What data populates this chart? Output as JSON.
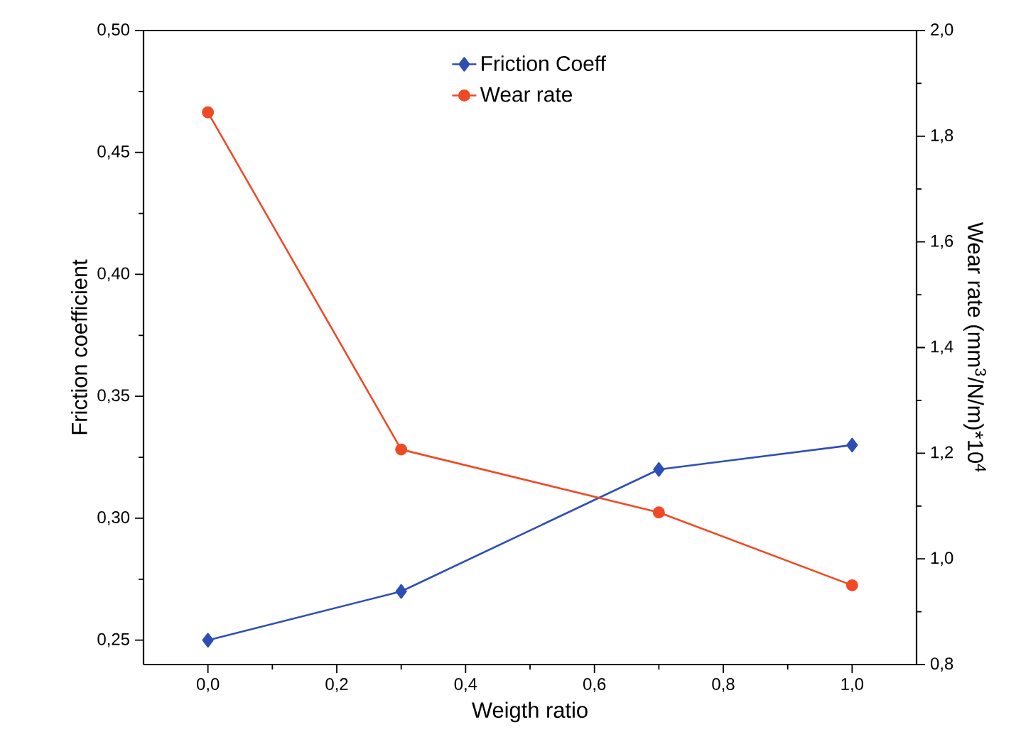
{
  "chart_data": {
    "type": "line",
    "xlabel": "Weigth ratio",
    "ylabel": "Friction coefficient",
    "y2label": "Wear rate (mm$^{3}$/N/m)*10$^{4}$",
    "x": [
      0.0,
      0.3,
      0.7,
      1.0
    ],
    "series": [
      {
        "name": "Friction Coeff",
        "color": "#2d4fb5",
        "marker": "diamond",
        "values": [
          0.25,
          0.27,
          0.32,
          0.33
        ]
      },
      {
        "name": "Wear rate",
        "color": "#f04a25",
        "marker": "circle",
        "axis": "y2",
        "values": [
          1.845,
          1.207,
          1.088,
          0.95
        ]
      }
    ],
    "xlim": [
      -0.1,
      1.1
    ],
    "xticks": [
      {
        "value": 0.0,
        "label": "0,0"
      },
      {
        "value": 0.2,
        "label": "0,2"
      },
      {
        "value": 0.4,
        "label": "0,4"
      },
      {
        "value": 0.6,
        "label": "0,6"
      },
      {
        "value": 0.8,
        "label": "0,8"
      },
      {
        "value": 1.0,
        "label": "1,0"
      }
    ],
    "ylim": [
      0.24,
      0.5
    ],
    "yticks": [
      {
        "value": 0.25,
        "label": "0,25"
      },
      {
        "value": 0.3,
        "label": "0,30"
      },
      {
        "value": 0.35,
        "label": "0,35"
      },
      {
        "value": 0.4,
        "label": "0,40"
      },
      {
        "value": 0.45,
        "label": "0,45"
      },
      {
        "value": 0.5,
        "label": "0,50"
      }
    ],
    "y2lim": [
      0.8,
      2.0
    ],
    "y2ticks": [
      {
        "value": 0.8,
        "label": "0,8"
      },
      {
        "value": 1.0,
        "label": "1,0"
      },
      {
        "value": 1.2,
        "label": "1,2"
      },
      {
        "value": 1.4,
        "label": "1,4"
      },
      {
        "value": 1.6,
        "label": "1,6"
      },
      {
        "value": 1.8,
        "label": "1,8"
      },
      {
        "value": 2.0,
        "label": "2,0"
      }
    ],
    "grid": false,
    "legend": "top",
    "line_style": "solid"
  }
}
